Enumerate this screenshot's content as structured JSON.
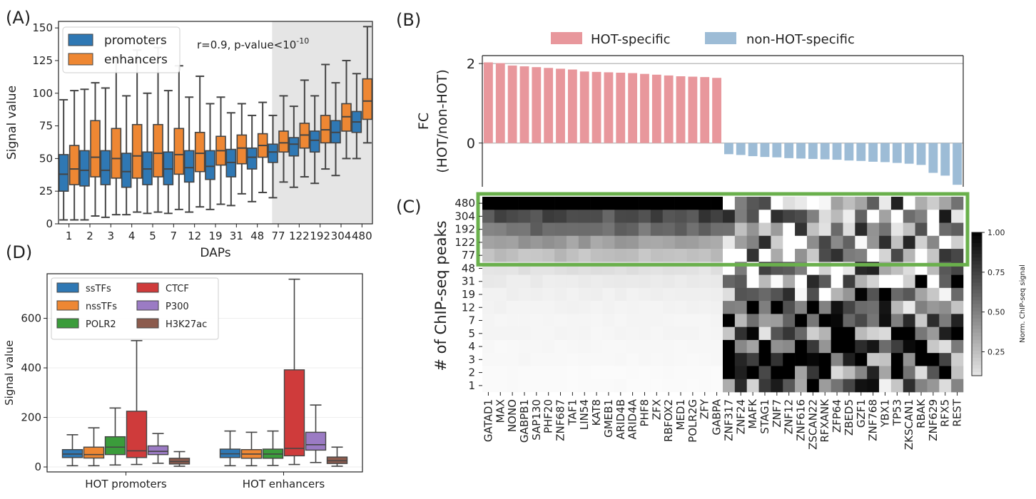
{
  "panels": {
    "A": "(A)",
    "B": "(B)",
    "C": "(C)",
    "D": "(D)"
  },
  "colors": {
    "promoters": "#2f78b4",
    "enhancers": "#ee8733",
    "hot_specific": "#e8979c",
    "non_hot_specific": "#9dbcd6",
    "highlight": "#6ab04c",
    "shade": "#e5e5e5",
    "ssTFs": "#2f78b4",
    "nssTFs": "#ee8733",
    "POLR2": "#3b9c3b",
    "CTCF": "#cf3b3b",
    "P300": "#9b7bc4",
    "H3K27ac": "#8c5b4d"
  },
  "chart_data": [
    {
      "panel": "A",
      "type": "box",
      "categories": [
        "1",
        "2",
        "3",
        "4",
        "5",
        "7",
        "12",
        "19",
        "31",
        "48",
        "77",
        "122",
        "192",
        "304",
        "480"
      ],
      "xlabel": "DAPs",
      "ylabel": "Signal value",
      "ylim": [
        0,
        155
      ],
      "yticks": [
        0,
        25,
        50,
        75,
        100,
        125,
        150
      ],
      "annotation": {
        "main": "r=0.9, p-value<10",
        "sup": "-10"
      },
      "shaded_from": "77",
      "legend": {
        "placement": "top-left",
        "entries": [
          "promoters",
          "enhancers"
        ]
      },
      "series": [
        {
          "name": "promoters",
          "boxes": [
            {
              "min": 3,
              "q1": 25,
              "median": 38,
              "q3": 53,
              "max": 95
            },
            {
              "min": 3,
              "q1": 29,
              "median": 41,
              "q3": 56,
              "max": 103
            },
            {
              "min": 5,
              "q1": 30,
              "median": 41,
              "q3": 56,
              "max": 104
            },
            {
              "min": 7,
              "q1": 28,
              "median": 40,
              "q3": 54,
              "max": 98
            },
            {
              "min": 8,
              "q1": 30,
              "median": 42,
              "q3": 55,
              "max": 100
            },
            {
              "min": 8,
              "q1": 30,
              "median": 42,
              "q3": 55,
              "max": 102
            },
            {
              "min": 9,
              "q1": 32,
              "median": 43,
              "q3": 56,
              "max": 97
            },
            {
              "min": 11,
              "q1": 34,
              "median": 44,
              "q3": 56,
              "max": 92
            },
            {
              "min": 14,
              "q1": 36,
              "median": 47,
              "q3": 57,
              "max": 85
            },
            {
              "min": 17,
              "q1": 42,
              "median": 51,
              "q3": 58,
              "max": 83
            },
            {
              "min": 20,
              "q1": 47,
              "median": 55,
              "q3": 61,
              "max": 83
            },
            {
              "min": 28,
              "q1": 52,
              "median": 61,
              "q3": 66,
              "max": 90
            },
            {
              "min": 31,
              "q1": 55,
              "median": 64,
              "q3": 71,
              "max": 98
            },
            {
              "min": 37,
              "q1": 62,
              "median": 70,
              "q3": 79,
              "max": 108
            },
            {
              "min": 50,
              "q1": 70,
              "median": 78,
              "q3": 86,
              "max": 115
            }
          ]
        },
        {
          "name": "enhancers",
          "boxes": [
            {
              "min": 3,
              "q1": 30,
              "median": 42,
              "q3": 60,
              "max": 102
            },
            {
              "min": 6,
              "q1": 36,
              "median": 51,
              "q3": 79,
              "max": 108
            },
            {
              "min": 7,
              "q1": 35,
              "median": 50,
              "q3": 73,
              "max": 128
            },
            {
              "min": 9,
              "q1": 35,
              "median": 52,
              "q3": 76,
              "max": 133
            },
            {
              "min": 9,
              "q1": 36,
              "median": 54,
              "q3": 76,
              "max": 135
            },
            {
              "min": 11,
              "q1": 38,
              "median": 53,
              "q3": 73,
              "max": 121
            },
            {
              "min": 13,
              "q1": 40,
              "median": 54,
              "q3": 70,
              "max": 113
            },
            {
              "min": 15,
              "q1": 45,
              "median": 56,
              "q3": 67,
              "max": 97
            },
            {
              "min": 23,
              "q1": 46,
              "median": 58,
              "q3": 68,
              "max": 92
            },
            {
              "min": 24,
              "q1": 51,
              "median": 60,
              "q3": 69,
              "max": 93
            },
            {
              "min": 32,
              "q1": 55,
              "median": 62,
              "q3": 71,
              "max": 98
            },
            {
              "min": 36,
              "q1": 58,
              "median": 68,
              "q3": 77,
              "max": 110
            },
            {
              "min": 42,
              "q1": 62,
              "median": 72,
              "q3": 83,
              "max": 122
            },
            {
              "min": 50,
              "q1": 71,
              "median": 82,
              "q3": 92,
              "max": 125
            },
            {
              "min": 62,
              "q1": 80,
              "median": 94,
              "q3": 111,
              "max": 151
            }
          ]
        }
      ]
    },
    {
      "panel": "B",
      "type": "bar",
      "ylabel_lines": [
        "FC",
        "(HOT/non-HOT)"
      ],
      "ylim": [
        -1.1,
        2.2
      ],
      "yticks": [
        0,
        2
      ],
      "legend": {
        "placement": "top",
        "entries": [
          "HOT-specific",
          "non-HOT-specific"
        ]
      },
      "categories": [
        "GATAD1",
        "MAX",
        "NONO",
        "GABPB1",
        "SAP130",
        "PHF20",
        "ZNF687",
        "TAF1",
        "LIN54",
        "KAT8",
        "GMEB1",
        "ARID4B",
        "ARID4A",
        "PHF8",
        "ZFX",
        "RBFOX2",
        "MED1",
        "POLR2G",
        "ZFY",
        "GABPA",
        "ZNF317",
        "ZNF24",
        "MAFK",
        "STAG1",
        "ZNF7",
        "ZNF12",
        "ZNF616",
        "ZSCAN22",
        "RFXANK",
        "ZFP64",
        "ZBED5",
        "GZF1",
        "ZNF768",
        "YBX1",
        "TP53",
        "ZKSCAN1",
        "RBAK",
        "ZNF629",
        "RFX5",
        "REST"
      ],
      "values": [
        2.03,
        2.01,
        1.95,
        1.93,
        1.91,
        1.89,
        1.87,
        1.85,
        1.8,
        1.79,
        1.78,
        1.77,
        1.76,
        1.74,
        1.72,
        1.7,
        1.68,
        1.67,
        1.66,
        1.64,
        -0.28,
        -0.3,
        -0.33,
        -0.35,
        -0.36,
        -0.38,
        -0.39,
        -0.4,
        -0.41,
        -0.42,
        -0.44,
        -0.45,
        -0.47,
        -0.48,
        -0.5,
        -0.52,
        -0.55,
        -0.75,
        -0.82,
        -1.05
      ],
      "groups": {
        "HOT-specific": 20,
        "non-HOT-specific": 20
      }
    },
    {
      "panel": "C",
      "type": "heatmap",
      "ylabel": "# of ChIP-seq peaks",
      "rows": [
        "480",
        "304",
        "192",
        "122",
        "77",
        "48",
        "31",
        "19",
        "12",
        "7",
        "5",
        "4",
        "3",
        "2",
        "1"
      ],
      "highlight_rows": [
        "480",
        "304",
        "192",
        "122",
        "77"
      ],
      "colorbar": {
        "label": "Norm. ChIP-seq signal",
        "ticks": [
          0.25,
          0.5,
          0.75,
          1.0
        ],
        "tick_labels": [
          "0.25",
          "0.50",
          "0.75",
          "1.00"
        ],
        "range": [
          0.1,
          1.0
        ]
      },
      "note": "columns share the categories of panel B; values are normalized signal (0-1) per row from 480 down to 1",
      "hot_profile": [
        1.0,
        0.72,
        0.58,
        0.4,
        0.26,
        0.12,
        0.08,
        0.06,
        0.05,
        0.04,
        0.04,
        0.03,
        0.03,
        0.02,
        0.02
      ],
      "non_hot_profile": [
        0.35,
        0.3,
        0.28,
        0.26,
        0.25,
        0.3,
        0.45,
        0.55,
        0.62,
        0.68,
        0.7,
        0.72,
        0.74,
        0.72,
        0.6
      ]
    },
    {
      "panel": "D",
      "type": "box",
      "categories": [
        "HOT promoters",
        "HOT enhancers"
      ],
      "ylabel": "Signal value",
      "ylim": [
        -20,
        780
      ],
      "yticks": [
        0,
        200,
        400,
        600
      ],
      "legend": {
        "placement": "top-left",
        "columns": 2,
        "entries": [
          "ssTFs",
          "nssTFs",
          "POLR2",
          "CTCF",
          "P300",
          "H3K27ac"
        ]
      },
      "series": [
        {
          "name": "ssTFs",
          "boxes": [
            {
              "min": 5,
              "q1": 38,
              "median": 52,
              "q3": 70,
              "max": 130
            },
            {
              "min": 5,
              "q1": 38,
              "median": 53,
              "q3": 72,
              "max": 145
            }
          ]
        },
        {
          "name": "nssTFs",
          "boxes": [
            {
              "min": 5,
              "q1": 36,
              "median": 50,
              "q3": 80,
              "max": 158
            },
            {
              "min": 5,
              "q1": 35,
              "median": 52,
              "q3": 70,
              "max": 140
            }
          ]
        },
        {
          "name": "POLR2",
          "boxes": [
            {
              "min": 8,
              "q1": 50,
              "median": 80,
              "q3": 122,
              "max": 238
            },
            {
              "min": 6,
              "q1": 35,
              "median": 52,
              "q3": 72,
              "max": 145
            }
          ]
        },
        {
          "name": "CTCF",
          "boxes": [
            {
              "min": 10,
              "q1": 38,
              "median": 65,
              "q3": 225,
              "max": 510
            },
            {
              "min": 10,
              "q1": 45,
              "median": 75,
              "q3": 392,
              "max": 758
            }
          ]
        },
        {
          "name": "P300",
          "boxes": [
            {
              "min": 15,
              "q1": 50,
              "median": 63,
              "q3": 85,
              "max": 135
            },
            {
              "min": 18,
              "q1": 68,
              "median": 90,
              "q3": 140,
              "max": 250
            }
          ]
        },
        {
          "name": "H3K27ac",
          "boxes": [
            {
              "min": 3,
              "q1": 12,
              "median": 22,
              "q3": 35,
              "max": 62
            },
            {
              "min": 3,
              "q1": 14,
              "median": 25,
              "q3": 40,
              "max": 80
            }
          ]
        }
      ]
    }
  ]
}
